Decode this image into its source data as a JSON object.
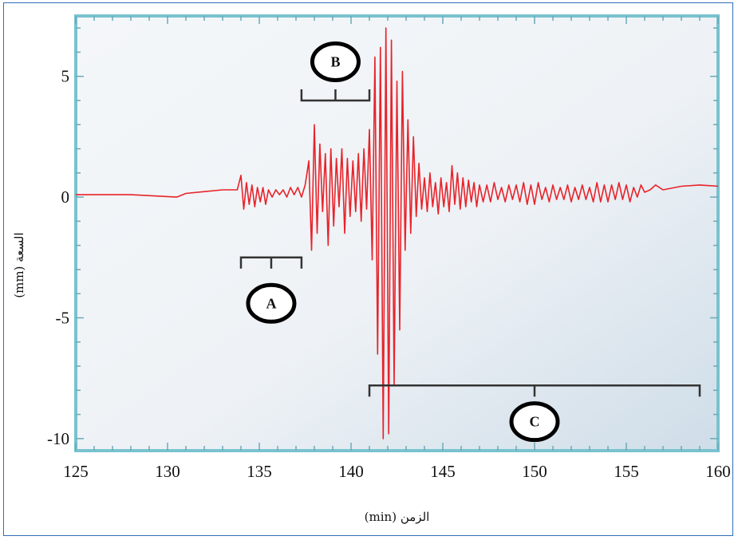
{
  "chart_data": {
    "type": "line",
    "title": "",
    "xlabel": "الزمن (min)",
    "ylabel": "السعة (mm)",
    "xlim": [
      125,
      160
    ],
    "ylim": [
      -10.5,
      7.5
    ],
    "x_ticks": [
      125,
      130,
      135,
      140,
      145,
      150,
      155,
      160
    ],
    "y_ticks": [
      5,
      0,
      -5,
      -10
    ],
    "y_tick_labels": [
      "5",
      "0",
      "-5",
      "-10"
    ],
    "grid": false,
    "line_color": "#e8232a",
    "series": [
      {
        "values_note": "",
        "x": [
          125,
          128,
          130.5,
          131,
          133,
          133.8,
          134.0,
          134.15,
          134.3,
          134.45,
          134.6,
          134.75,
          134.9,
          135.05,
          135.2,
          135.35,
          135.5,
          135.7,
          135.9,
          136.1,
          136.3,
          136.5,
          136.7,
          136.9,
          137.1,
          137.3,
          137.5,
          137.7,
          137.85,
          138.0,
          138.15,
          138.3,
          138.45,
          138.6,
          138.75,
          138.9,
          139.05,
          139.2,
          139.35,
          139.5,
          139.65,
          139.8,
          139.95,
          140.1,
          140.25,
          140.4,
          140.55,
          140.7,
          140.85,
          141.0,
          141.15,
          141.3,
          141.45,
          141.6,
          141.75,
          141.9,
          142.05,
          142.2,
          142.35,
          142.5,
          142.65,
          142.8,
          142.95,
          143.1,
          143.25,
          143.4,
          143.55,
          143.7,
          143.85,
          144.0,
          144.15,
          144.3,
          144.45,
          144.6,
          144.75,
          144.9,
          145.05,
          145.2,
          145.35,
          145.5,
          145.65,
          145.8,
          145.95,
          146.1,
          146.25,
          146.4,
          146.55,
          146.7,
          146.85,
          147.0,
          147.2,
          147.4,
          147.6,
          147.8,
          148.0,
          148.2,
          148.4,
          148.6,
          148.8,
          149.0,
          149.2,
          149.4,
          149.6,
          149.8,
          150.0,
          150.2,
          150.4,
          150.6,
          150.8,
          151.0,
          151.2,
          151.4,
          151.6,
          151.8,
          152.0,
          152.2,
          152.4,
          152.6,
          152.8,
          153.0,
          153.2,
          153.4,
          153.6,
          153.8,
          154.0,
          154.2,
          154.4,
          154.6,
          154.8,
          155.0,
          155.2,
          155.4,
          155.6,
          155.8,
          156.0,
          156.3,
          156.6,
          157,
          158,
          159,
          160
        ],
        "y": [
          0.1,
          0.1,
          0.0,
          0.15,
          0.3,
          0.3,
          0.9,
          -0.5,
          0.6,
          -0.3,
          0.5,
          -0.4,
          0.4,
          -0.2,
          0.4,
          -0.3,
          0.3,
          0.0,
          0.3,
          0.1,
          0.3,
          0.0,
          0.4,
          0.1,
          0.4,
          0.0,
          0.5,
          1.5,
          -2.2,
          3.0,
          -1.5,
          2.2,
          -0.6,
          1.8,
          -2.0,
          2.0,
          -1.2,
          1.6,
          -0.4,
          2.0,
          -1.5,
          1.6,
          -0.8,
          1.5,
          -0.6,
          1.8,
          -1.0,
          2.0,
          -0.5,
          2.8,
          -2.6,
          5.8,
          -6.5,
          6.2,
          -10.0,
          7.0,
          -9.8,
          6.5,
          -7.8,
          4.8,
          -5.5,
          5.2,
          -2.2,
          3.2,
          -1.5,
          2.5,
          -0.8,
          1.4,
          -0.5,
          0.8,
          -0.6,
          1.0,
          -0.4,
          0.6,
          -0.7,
          0.8,
          -0.4,
          0.6,
          -0.6,
          1.3,
          -0.3,
          1.0,
          -0.5,
          0.8,
          -0.4,
          0.7,
          -0.2,
          0.6,
          -0.4,
          0.5,
          -0.2,
          0.5,
          -0.2,
          0.6,
          -0.1,
          0.4,
          -0.2,
          0.5,
          -0.1,
          0.5,
          -0.2,
          0.6,
          -0.3,
          0.5,
          -0.3,
          0.6,
          -0.1,
          0.4,
          -0.2,
          0.5,
          -0.1,
          0.4,
          -0.1,
          0.5,
          -0.2,
          0.4,
          -0.1,
          0.5,
          -0.1,
          0.4,
          -0.2,
          0.6,
          -0.2,
          0.5,
          -0.2,
          0.5,
          -0.1,
          0.6,
          -0.1,
          0.5,
          -0.2,
          0.4,
          0.0,
          0.5,
          0.2,
          0.3,
          0.5,
          0.3,
          0.45,
          0.5,
          0.45
        ]
      }
    ],
    "annotations": [
      {
        "label": "A",
        "x_start": 134.0,
        "x_end": 137.3,
        "bracket_y": -2.5,
        "direction": "down",
        "circle_y": -4.4
      },
      {
        "label": "B",
        "x_start": 137.3,
        "x_end": 141.0,
        "bracket_y": 4.0,
        "direction": "up",
        "circle_y": 5.6
      },
      {
        "label": "C",
        "x_start": 141.0,
        "x_end": 159.0,
        "bracket_y": -7.8,
        "direction": "down",
        "circle_y": -9.3
      }
    ]
  }
}
